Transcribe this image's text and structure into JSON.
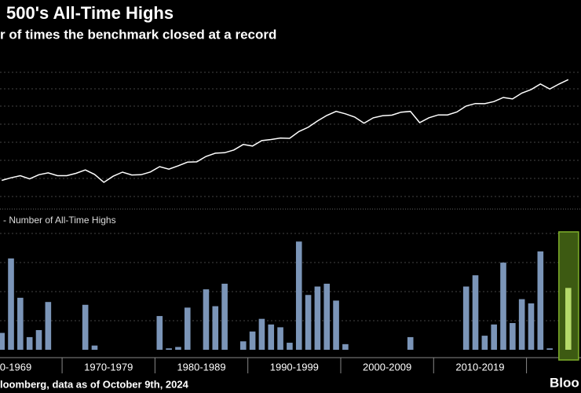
{
  "chart_data": [
    {
      "type": "line",
      "title": "500's All-Time Highs",
      "subtitle": "r of times the benchmark closed at a record",
      "x": [
        1963,
        1964,
        1965,
        1966,
        1967,
        1968,
        1969,
        1970,
        1971,
        1972,
        1973,
        1974,
        1975,
        1976,
        1977,
        1978,
        1979,
        1980,
        1981,
        1982,
        1983,
        1984,
        1985,
        1986,
        1987,
        1988,
        1989,
        1990,
        1991,
        1992,
        1993,
        1994,
        1995,
        1996,
        1997,
        1998,
        1999,
        2000,
        2001,
        2002,
        2003,
        2004,
        2005,
        2006,
        2007,
        2008,
        2009,
        2010,
        2011,
        2012,
        2013,
        2014,
        2015,
        2016,
        2017,
        2018,
        2019,
        2020,
        2021,
        2022,
        2023,
        2024
      ],
      "values": [
        75,
        84,
        92,
        80,
        96,
        104,
        92,
        92,
        102,
        118,
        97,
        69,
        90,
        107,
        95,
        96,
        108,
        136,
        122,
        141,
        165,
        167,
        211,
        242,
        247,
        278,
        353,
        330,
        417,
        436,
        466,
        459,
        616,
        741,
        970,
        1229,
        1469,
        1320,
        1148,
        880,
        1112,
        1212,
        1248,
        1418,
        1468,
        903,
        1115,
        1258,
        1258,
        1426,
        1848,
        2059,
        2044,
        2239,
        2674,
        2507,
        3231,
        3756,
        4766,
        3840,
        4770,
        5751
      ],
      "color": "#ffffff",
      "log_scale": true,
      "ylim": [
        25,
        10000
      ]
    },
    {
      "type": "bar",
      "legend_label": "- Number of All-Time Highs",
      "x": [
        1963,
        1964,
        1965,
        1966,
        1967,
        1968,
        1969,
        1970,
        1971,
        1972,
        1973,
        1974,
        1975,
        1976,
        1977,
        1978,
        1979,
        1980,
        1981,
        1982,
        1983,
        1984,
        1985,
        1986,
        1987,
        1988,
        1989,
        1990,
        1991,
        1992,
        1993,
        1994,
        1995,
        1996,
        1997,
        1998,
        1999,
        2000,
        2001,
        2002,
        2003,
        2004,
        2005,
        2006,
        2007,
        2008,
        2009,
        2010,
        2011,
        2012,
        2013,
        2014,
        2015,
        2016,
        2017,
        2018,
        2019,
        2020,
        2021,
        2022,
        2023,
        2024
      ],
      "values": [
        12,
        65,
        37,
        9,
        14,
        34,
        0,
        0,
        0,
        32,
        3,
        0,
        0,
        0,
        0,
        0,
        0,
        24,
        1,
        2,
        30,
        0,
        43,
        31,
        47,
        0,
        6,
        13,
        22,
        18,
        16,
        5,
        77,
        39,
        45,
        47,
        35,
        4,
        0,
        0,
        0,
        0,
        0,
        0,
        9,
        0,
        0,
        0,
        0,
        0,
        45,
        53,
        10,
        18,
        62,
        19,
        36,
        33,
        70,
        1,
        0,
        44
      ],
      "color": "#7b95b8",
      "highlight_x": 2024,
      "highlight_color": "#b5d96a",
      "ylim": [
        0,
        85
      ],
      "decade_labels": [
        "0-1969",
        "1970-1979",
        "1980-1989",
        "1990-1999",
        "2000-2009",
        "2010-2019"
      ]
    }
  ],
  "source": "loomberg, data as of October 9th, 2024",
  "logo": "Bloo"
}
